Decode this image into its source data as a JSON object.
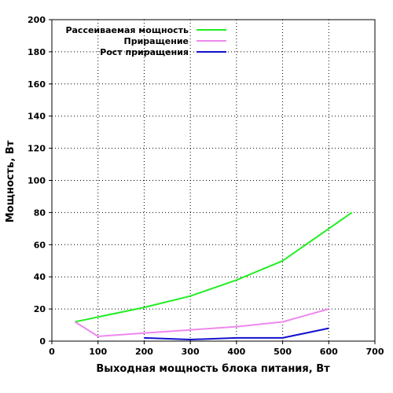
{
  "chart_data": {
    "type": "line",
    "xlabel": "Выходная мощность блока питания, Вт",
    "ylabel": "Мощность, Вт",
    "xlim": [
      0,
      700
    ],
    "ylim": [
      0,
      200
    ],
    "xticks": [
      0,
      100,
      200,
      300,
      400,
      500,
      600,
      700
    ],
    "yticks": [
      0,
      20,
      40,
      60,
      80,
      100,
      120,
      140,
      160,
      180,
      200
    ],
    "grid": true,
    "legend_position": "top-left",
    "series": [
      {
        "name": "Рассеиваемая мощность",
        "color": "#22ee22",
        "x": [
          50,
          100,
          200,
          300,
          400,
          500,
          600,
          650
        ],
        "y": [
          12,
          15,
          21,
          28,
          38,
          50,
          70,
          80
        ]
      },
      {
        "name": "Приращение",
        "color": "#ee88ee",
        "x": [
          50,
          100,
          200,
          300,
          400,
          500,
          600
        ],
        "y": [
          12,
          3,
          5,
          7,
          9,
          12,
          20
        ]
      },
      {
        "name": "Рост приращения",
        "color": "#1111cc",
        "x": [
          200,
          300,
          400,
          500,
          600
        ],
        "y": [
          2,
          1,
          2,
          2,
          8
        ]
      }
    ]
  }
}
